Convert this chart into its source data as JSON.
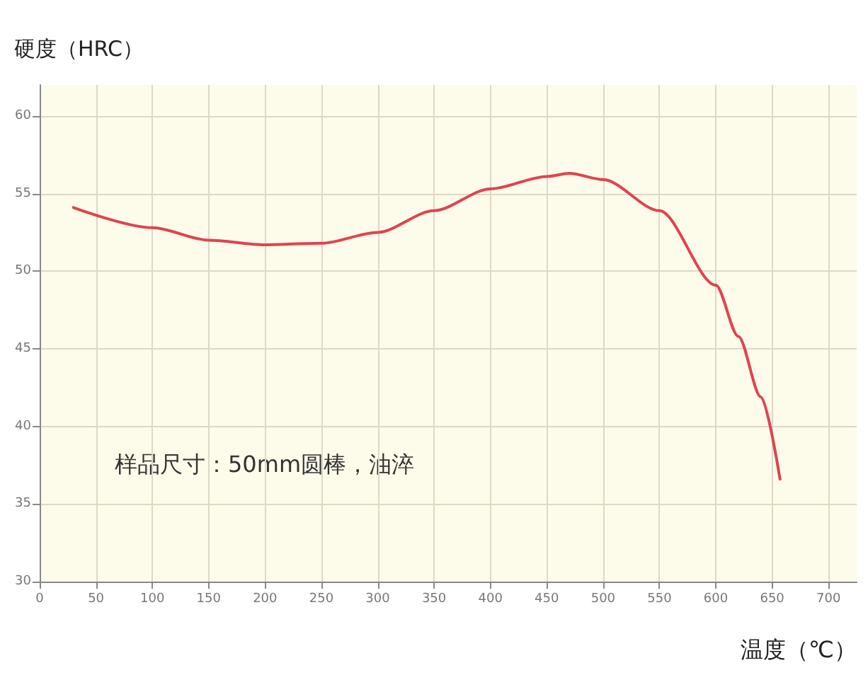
{
  "chart_data": {
    "type": "line",
    "xlabel": "温度（℃）",
    "ylabel": "硬度（HRC）",
    "annotations": [
      "样品尺寸：50mm圆棒，油淬"
    ],
    "series": [
      {
        "color": "#e0434f",
        "x": [
          30,
          100,
          150,
          200,
          250,
          300,
          350,
          400,
          450,
          470,
          500,
          550,
          600,
          620,
          640,
          657
        ],
        "values": [
          54.1,
          52.8,
          52.0,
          51.7,
          51.8,
          52.5,
          53.9,
          55.3,
          56.1,
          56.3,
          55.9,
          53.9,
          49.1,
          45.8,
          41.9,
          36.6
        ]
      }
    ],
    "xlim": [
      0,
      725
    ],
    "xticks": [
      0,
      50,
      100,
      150,
      200,
      250,
      300,
      350,
      400,
      450,
      500,
      550,
      600,
      650,
      700
    ],
    "ylim": [
      30,
      62
    ],
    "yticks": [
      30,
      35,
      40,
      45,
      50,
      55,
      60
    ],
    "grid": true,
    "marker": "none",
    "line_style": "solid"
  }
}
